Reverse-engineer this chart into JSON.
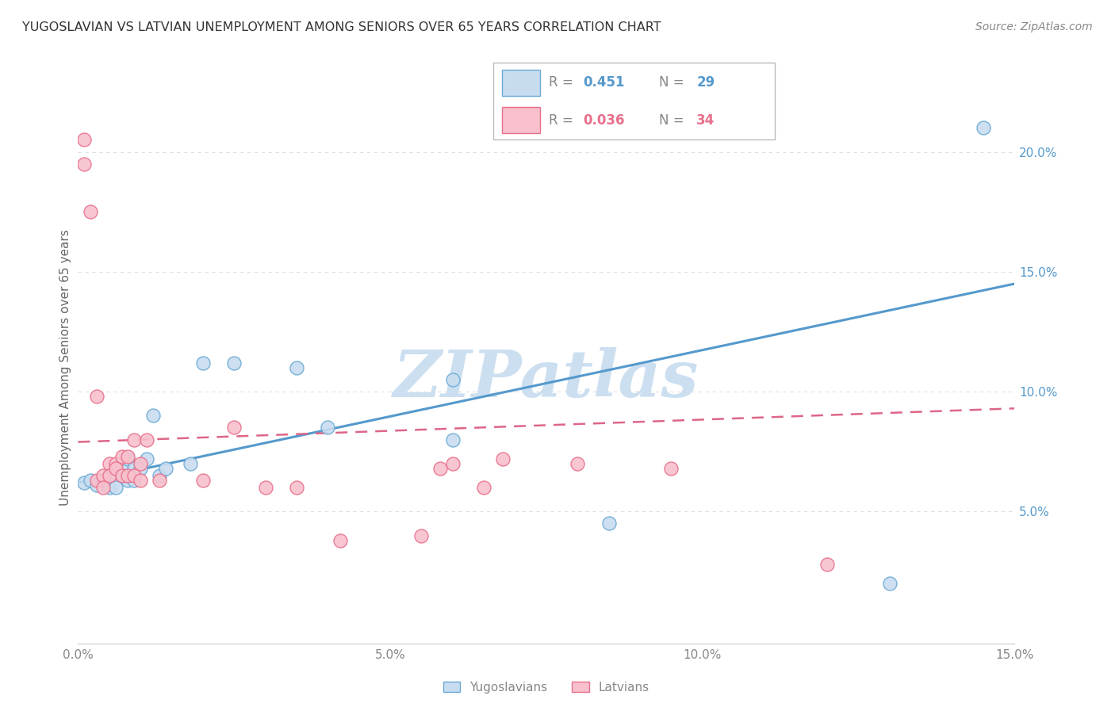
{
  "title": "YUGOSLAVIAN VS LATVIAN UNEMPLOYMENT AMONG SENIORS OVER 65 YEARS CORRELATION CHART",
  "source": "Source: ZipAtlas.com",
  "ylabel": "Unemployment Among Seniors over 65 years",
  "xlim": [
    0.0,
    0.15
  ],
  "ylim": [
    -0.005,
    0.225
  ],
  "xticks": [
    0.0,
    0.05,
    0.1,
    0.15
  ],
  "xticklabels": [
    "0.0%",
    "5.0%",
    "10.0%",
    "15.0%"
  ],
  "yticks_right": [
    0.05,
    0.1,
    0.15,
    0.2
  ],
  "yticklabels_right": [
    "5.0%",
    "10.0%",
    "15.0%",
    "20.0%"
  ],
  "legend_labels": [
    "Yugoslavians",
    "Latvians"
  ],
  "yug_R": "0.451",
  "yug_N": "29",
  "lat_R": "0.036",
  "lat_N": "34",
  "yug_fill_color": "#c8dcf0",
  "yug_edge_color": "#6aaad4",
  "lat_fill_color": "#f8c0cc",
  "lat_edge_color": "#e8708c",
  "yug_line_color": "#5599cc",
  "lat_line_color": "#dd6688",
  "watermark": "ZIPatlas",
  "watermark_color": "#ccdff0",
  "yug_scatter_x": [
    0.001,
    0.002,
    0.003,
    0.004,
    0.005,
    0.005,
    0.006,
    0.007,
    0.007,
    0.008,
    0.008,
    0.008,
    0.009,
    0.009,
    0.01,
    0.011,
    0.012,
    0.013,
    0.014,
    0.018,
    0.02,
    0.025,
    0.035,
    0.04,
    0.06,
    0.06,
    0.085,
    0.13,
    0.145
  ],
  "yug_scatter_y": [
    0.062,
    0.063,
    0.061,
    0.063,
    0.065,
    0.06,
    0.06,
    0.065,
    0.068,
    0.063,
    0.065,
    0.072,
    0.063,
    0.068,
    0.068,
    0.072,
    0.09,
    0.065,
    0.068,
    0.07,
    0.112,
    0.112,
    0.11,
    0.085,
    0.105,
    0.08,
    0.045,
    0.02,
    0.21
  ],
  "lat_scatter_x": [
    0.001,
    0.001,
    0.002,
    0.003,
    0.003,
    0.004,
    0.004,
    0.005,
    0.005,
    0.006,
    0.006,
    0.007,
    0.007,
    0.008,
    0.008,
    0.009,
    0.009,
    0.01,
    0.01,
    0.011,
    0.013,
    0.02,
    0.025,
    0.03,
    0.035,
    0.042,
    0.055,
    0.058,
    0.06,
    0.065,
    0.068,
    0.08,
    0.095,
    0.12
  ],
  "lat_scatter_y": [
    0.195,
    0.205,
    0.175,
    0.063,
    0.098,
    0.065,
    0.06,
    0.07,
    0.065,
    0.07,
    0.068,
    0.073,
    0.065,
    0.073,
    0.065,
    0.065,
    0.08,
    0.063,
    0.07,
    0.08,
    0.063,
    0.063,
    0.085,
    0.06,
    0.06,
    0.038,
    0.04,
    0.068,
    0.07,
    0.06,
    0.072,
    0.07,
    0.068,
    0.028
  ],
  "yug_trend_x0": 0.0,
  "yug_trend_x1": 0.15,
  "yug_trend_y0": 0.062,
  "yug_trend_y1": 0.145,
  "lat_trend_x0": 0.0,
  "lat_trend_x1": 0.15,
  "lat_trend_y0": 0.079,
  "lat_trend_y1": 0.093,
  "grid_color": "#e0e0e0",
  "tick_color": "#888888",
  "title_color": "#333333",
  "source_color": "#888888",
  "ylabel_color": "#666666",
  "right_tick_color": "#5599cc"
}
